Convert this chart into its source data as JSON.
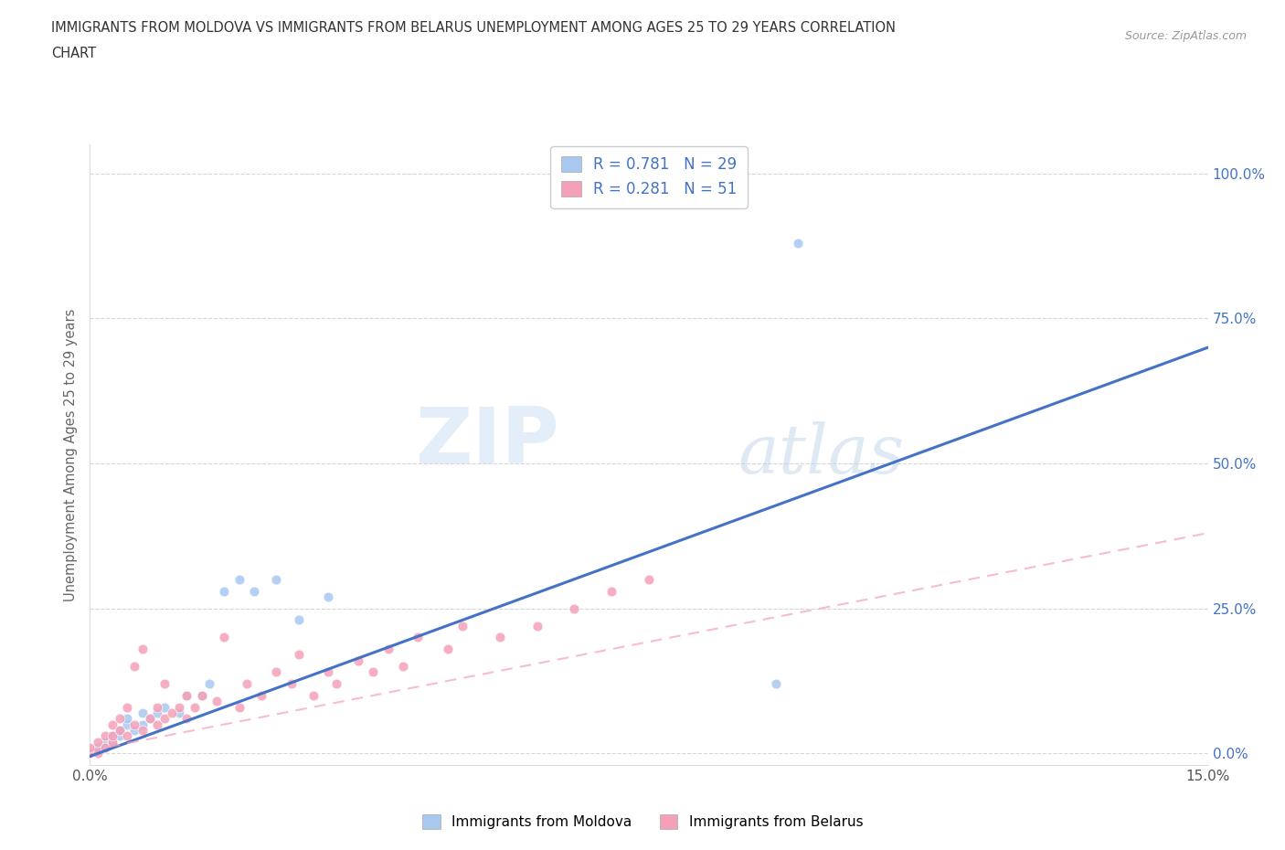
{
  "title_line1": "IMMIGRANTS FROM MOLDOVA VS IMMIGRANTS FROM BELARUS UNEMPLOYMENT AMONG AGES 25 TO 29 YEARS CORRELATION",
  "title_line2": "CHART",
  "source": "Source: ZipAtlas.com",
  "ylabel": "Unemployment Among Ages 25 to 29 years",
  "xlim": [
    0.0,
    0.15
  ],
  "ylim": [
    -0.02,
    1.05
  ],
  "yticks": [
    0.0,
    0.25,
    0.5,
    0.75,
    1.0
  ],
  "ytick_labels": [
    "0.0%",
    "25.0%",
    "50.0%",
    "75.0%",
    "100.0%"
  ],
  "xtick_vals": [
    0.0,
    0.03,
    0.06,
    0.09,
    0.12,
    0.15
  ],
  "xtick_labels": [
    "0.0%",
    "",
    "",
    "",
    "",
    "15.0%"
  ],
  "moldova_R": 0.781,
  "moldova_N": 29,
  "belarus_R": 0.281,
  "belarus_N": 51,
  "moldova_color": "#a8c8f0",
  "belarus_color": "#f4a0b8",
  "moldova_line_color": "#4472c4",
  "belarus_line_color": "#f4a0b8",
  "watermark_zip": "ZIP",
  "watermark_atlas": "atlas",
  "background_color": "#ffffff",
  "grid_color": "#cccccc",
  "legend_label_moldova": "Immigrants from Moldova",
  "legend_label_belarus": "Immigrants from Belarus",
  "mol_line_x0": 0.0,
  "mol_line_y0": -0.005,
  "mol_line_x1": 0.15,
  "mol_line_y1": 0.7,
  "bel_line_x0": 0.0,
  "bel_line_y0": 0.005,
  "bel_line_x1": 0.15,
  "bel_line_y1": 0.38,
  "mol_scatter_x": [
    0.0,
    0.001,
    0.001,
    0.002,
    0.002,
    0.003,
    0.003,
    0.004,
    0.004,
    0.005,
    0.005,
    0.006,
    0.007,
    0.007,
    0.008,
    0.009,
    0.01,
    0.012,
    0.013,
    0.015,
    0.016,
    0.018,
    0.02,
    0.022,
    0.025,
    0.028,
    0.032,
    0.092,
    0.095
  ],
  "mol_scatter_y": [
    0.0,
    0.005,
    0.01,
    0.01,
    0.02,
    0.02,
    0.03,
    0.03,
    0.04,
    0.05,
    0.06,
    0.04,
    0.05,
    0.07,
    0.06,
    0.07,
    0.08,
    0.07,
    0.1,
    0.1,
    0.12,
    0.28,
    0.3,
    0.28,
    0.3,
    0.23,
    0.27,
    0.12,
    0.88
  ],
  "bel_scatter_x": [
    0.0,
    0.0,
    0.001,
    0.001,
    0.002,
    0.002,
    0.003,
    0.003,
    0.003,
    0.004,
    0.004,
    0.005,
    0.005,
    0.006,
    0.006,
    0.007,
    0.007,
    0.008,
    0.009,
    0.009,
    0.01,
    0.01,
    0.011,
    0.012,
    0.013,
    0.013,
    0.014,
    0.015,
    0.017,
    0.018,
    0.02,
    0.021,
    0.023,
    0.025,
    0.027,
    0.028,
    0.03,
    0.032,
    0.033,
    0.036,
    0.038,
    0.04,
    0.042,
    0.044,
    0.048,
    0.05,
    0.055,
    0.06,
    0.065,
    0.07,
    0.075
  ],
  "bel_scatter_y": [
    0.0,
    0.01,
    0.0,
    0.02,
    0.01,
    0.03,
    0.02,
    0.03,
    0.05,
    0.04,
    0.06,
    0.03,
    0.08,
    0.05,
    0.15,
    0.04,
    0.18,
    0.06,
    0.05,
    0.08,
    0.06,
    0.12,
    0.07,
    0.08,
    0.06,
    0.1,
    0.08,
    0.1,
    0.09,
    0.2,
    0.08,
    0.12,
    0.1,
    0.14,
    0.12,
    0.17,
    0.1,
    0.14,
    0.12,
    0.16,
    0.14,
    0.18,
    0.15,
    0.2,
    0.18,
    0.22,
    0.2,
    0.22,
    0.25,
    0.28,
    0.3
  ]
}
